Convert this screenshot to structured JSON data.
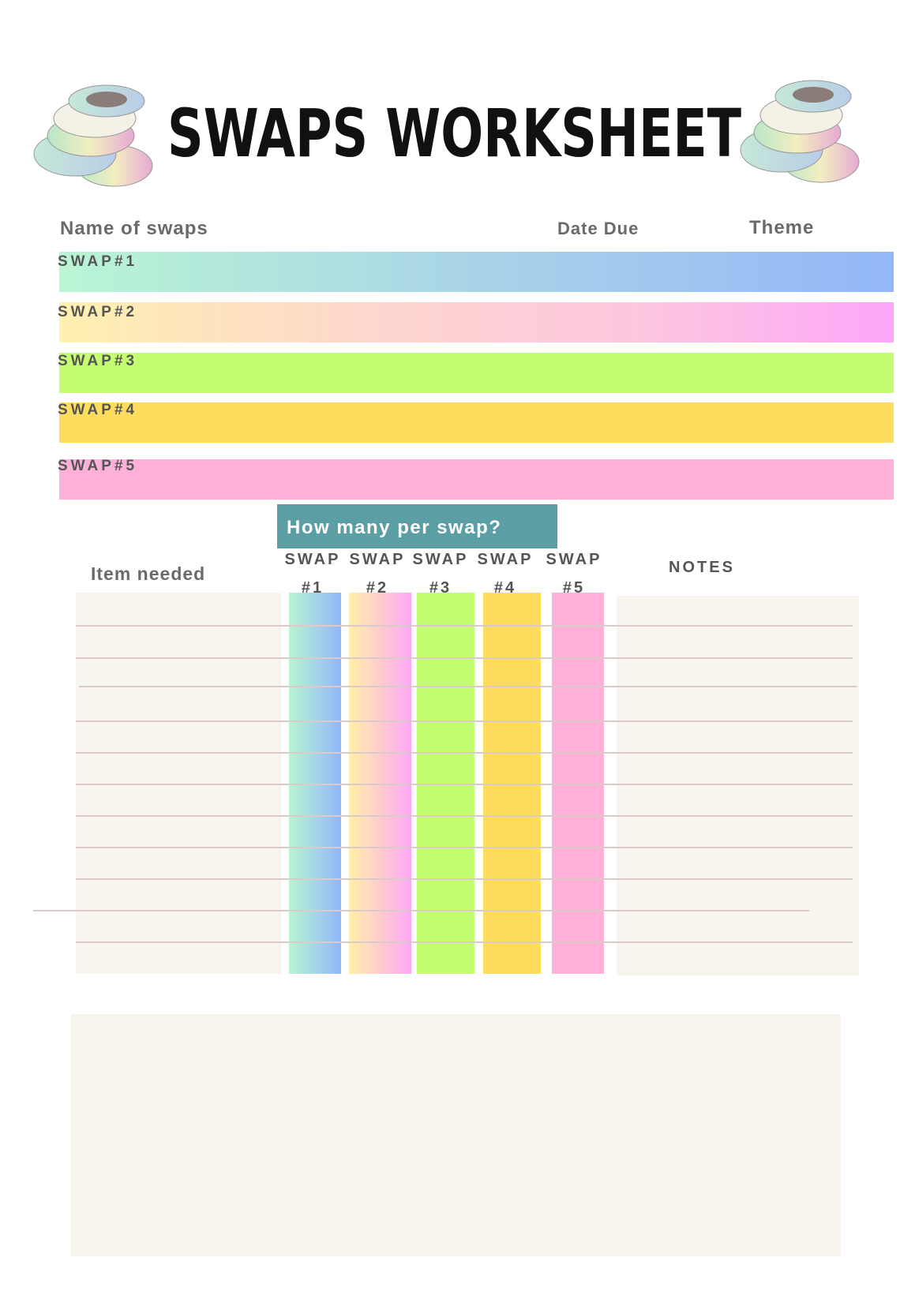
{
  "header": {
    "title": "SWAPS WORKSHEET"
  },
  "swap_list": {
    "headers": [
      "Name of swaps",
      "Date Due",
      "Theme"
    ],
    "rows": [
      "SWAP#1",
      "SWAP#2",
      "SWAP#3",
      "SWAP#4",
      "SWAP#5"
    ]
  },
  "tracker": {
    "banner": "How many per swap?",
    "item_header": "Item needed",
    "columns": [
      {
        "line1": "SWAP",
        "line2": "#1"
      },
      {
        "line1": "SWAP",
        "line2": "#2"
      },
      {
        "line1": "SWAP",
        "line2": "#3"
      },
      {
        "line1": "SWAP",
        "line2": "#4"
      },
      {
        "line1": "SWAP",
        "line2": "#5"
      }
    ],
    "notes_header": "NOTES"
  }
}
